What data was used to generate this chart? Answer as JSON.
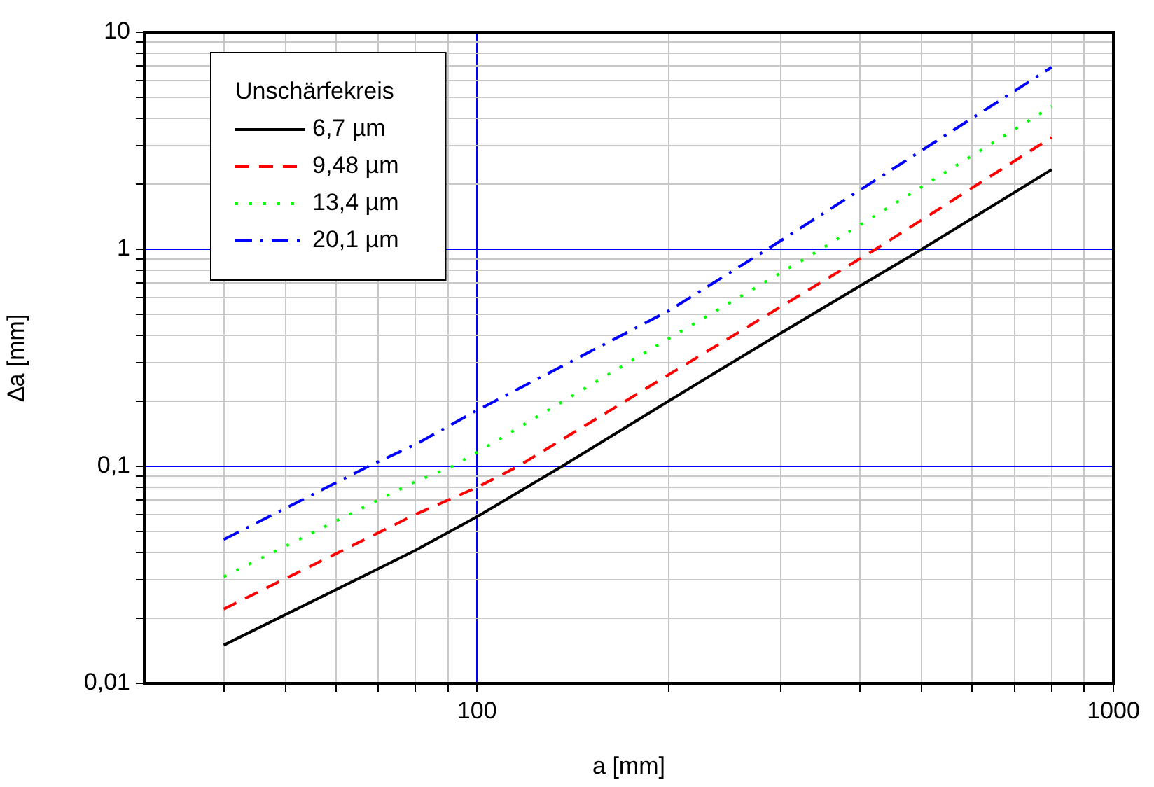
{
  "chart_data": {
    "type": "line",
    "xlabel": "a [mm]",
    "ylabel": "∆a [mm]",
    "legend_title": "Unschärfekreis",
    "legend": "top left",
    "log": "xy",
    "grid": true,
    "marker": "none",
    "xlim": [
      30,
      1000
    ],
    "xticks": [
      {
        "value": 40,
        "label": null
      },
      {
        "value": 50,
        "label": null
      },
      {
        "value": 60,
        "label": null
      },
      {
        "value": 70,
        "label": null
      },
      {
        "value": 80,
        "label": null
      },
      {
        "value": 90,
        "label": null
      },
      100,
      {
        "value": 200,
        "label": null
      },
      {
        "value": 300,
        "label": null
      },
      {
        "value": 400,
        "label": null
      },
      {
        "value": 500,
        "label": null
      },
      {
        "value": 600,
        "label": null
      },
      {
        "value": 700,
        "label": null
      },
      {
        "value": 800,
        "label": null
      },
      {
        "value": 900,
        "label": null
      },
      1000
    ],
    "ylim": [
      0.01,
      10
    ],
    "yticks": [
      {
        "value": 0.01,
        "label": "0,01"
      },
      {
        "value": 0.02,
        "label": null
      },
      {
        "value": 0.03,
        "label": null
      },
      {
        "value": 0.04,
        "label": null
      },
      {
        "value": 0.05,
        "label": null
      },
      {
        "value": 0.06,
        "label": null
      },
      {
        "value": 0.07,
        "label": null
      },
      {
        "value": 0.08,
        "label": null
      },
      {
        "value": 0.09,
        "label": null
      },
      {
        "value": 0.1,
        "label": "0,1"
      },
      {
        "value": 0.2,
        "label": null
      },
      {
        "value": 0.3,
        "label": null
      },
      {
        "value": 0.4,
        "label": null
      },
      {
        "value": 0.5,
        "label": null
      },
      {
        "value": 0.6,
        "label": null
      },
      {
        "value": 0.7,
        "label": null
      },
      {
        "value": 0.8,
        "label": null
      },
      {
        "value": 0.9,
        "label": null
      },
      1,
      {
        "value": 2,
        "label": null
      },
      {
        "value": 3,
        "label": null
      },
      {
        "value": 4,
        "label": null
      },
      {
        "value": 5,
        "label": null
      },
      {
        "value": 6,
        "label": null
      },
      {
        "value": 7,
        "label": null
      },
      {
        "value": 8,
        "label": null
      },
      {
        "value": 9,
        "label": null
      },
      10
    ],
    "series": [
      {
        "name": "6,7 µm",
        "color": "#000000",
        "line_style": "solid",
        "x": [
          40,
          80,
          100,
          136,
          200,
          300,
          500,
          800
        ],
        "values": [
          0.015,
          0.041,
          0.0586,
          0.1,
          0.2,
          0.41,
          1,
          2.33
        ]
      },
      {
        "name": "9,48 µm",
        "color": "#ff0000",
        "line_style": "dashed",
        "x": [
          40,
          80,
          100,
          116,
          200,
          423,
          800
        ],
        "values": [
          0.022,
          0.06,
          0.08,
          0.1,
          0.264,
          1,
          3.28
        ]
      },
      {
        "name": "13,4 µm",
        "color": "#00ff00",
        "line_style": "dotted",
        "x": [
          40,
          80,
          91.4,
          100,
          200,
          347,
          800
        ],
        "values": [
          0.031,
          0.085,
          0.1,
          0.116,
          0.387,
          1,
          4.55
        ]
      },
      {
        "name": "20,1 µm",
        "color": "#0000ff",
        "line_style": "dashdot",
        "x": [
          40,
          67.5,
          80,
          100,
          200,
          286,
          800
        ],
        "values": [
          0.046,
          0.1,
          0.126,
          0.181,
          0.52,
          1,
          6.9
        ]
      }
    ]
  }
}
